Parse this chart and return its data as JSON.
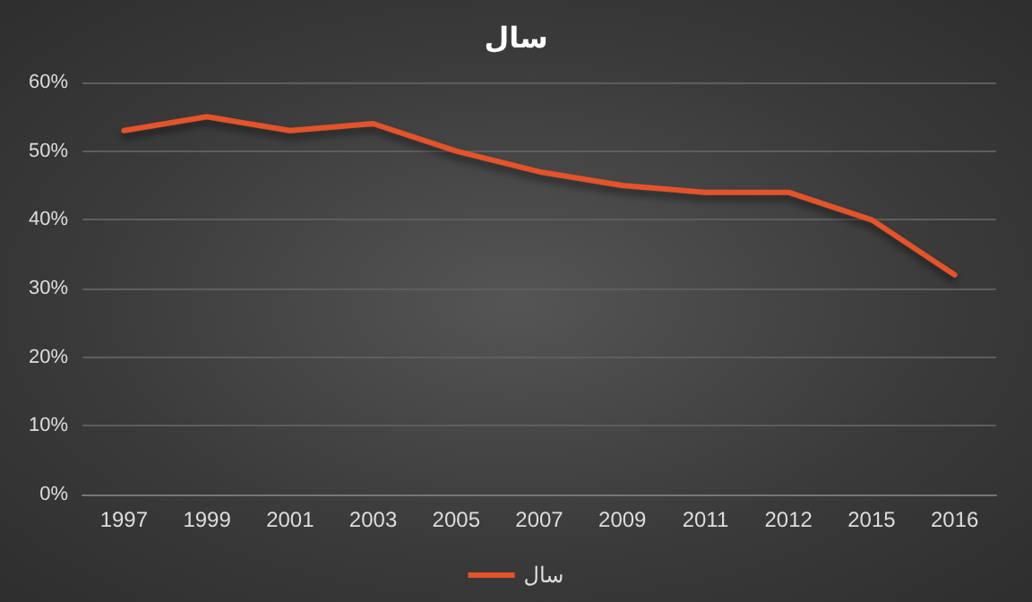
{
  "chart_data": {
    "type": "line",
    "title": "سال",
    "categories": [
      "1997",
      "1999",
      "2001",
      "2003",
      "2005",
      "2007",
      "2009",
      "2011",
      "2012",
      "2015",
      "2016"
    ],
    "series": [
      {
        "name": "سال",
        "color": "#e4532a",
        "values": [
          53,
          55,
          53,
          54,
          50,
          47,
          45,
          44,
          44,
          40,
          32
        ]
      }
    ],
    "ylim": [
      0,
      60
    ],
    "yticks": [
      {
        "value": 0,
        "label": "0%"
      },
      {
        "value": 10,
        "label": "10%"
      },
      {
        "value": 20,
        "label": "20%"
      },
      {
        "value": 30,
        "label": "30%"
      },
      {
        "value": 40,
        "label": "40%"
      },
      {
        "value": 50,
        "label": "50%"
      },
      {
        "value": 60,
        "label": "60%"
      }
    ],
    "grid": "y",
    "legend": "bottom",
    "marker": "none",
    "line_style": "solid"
  }
}
